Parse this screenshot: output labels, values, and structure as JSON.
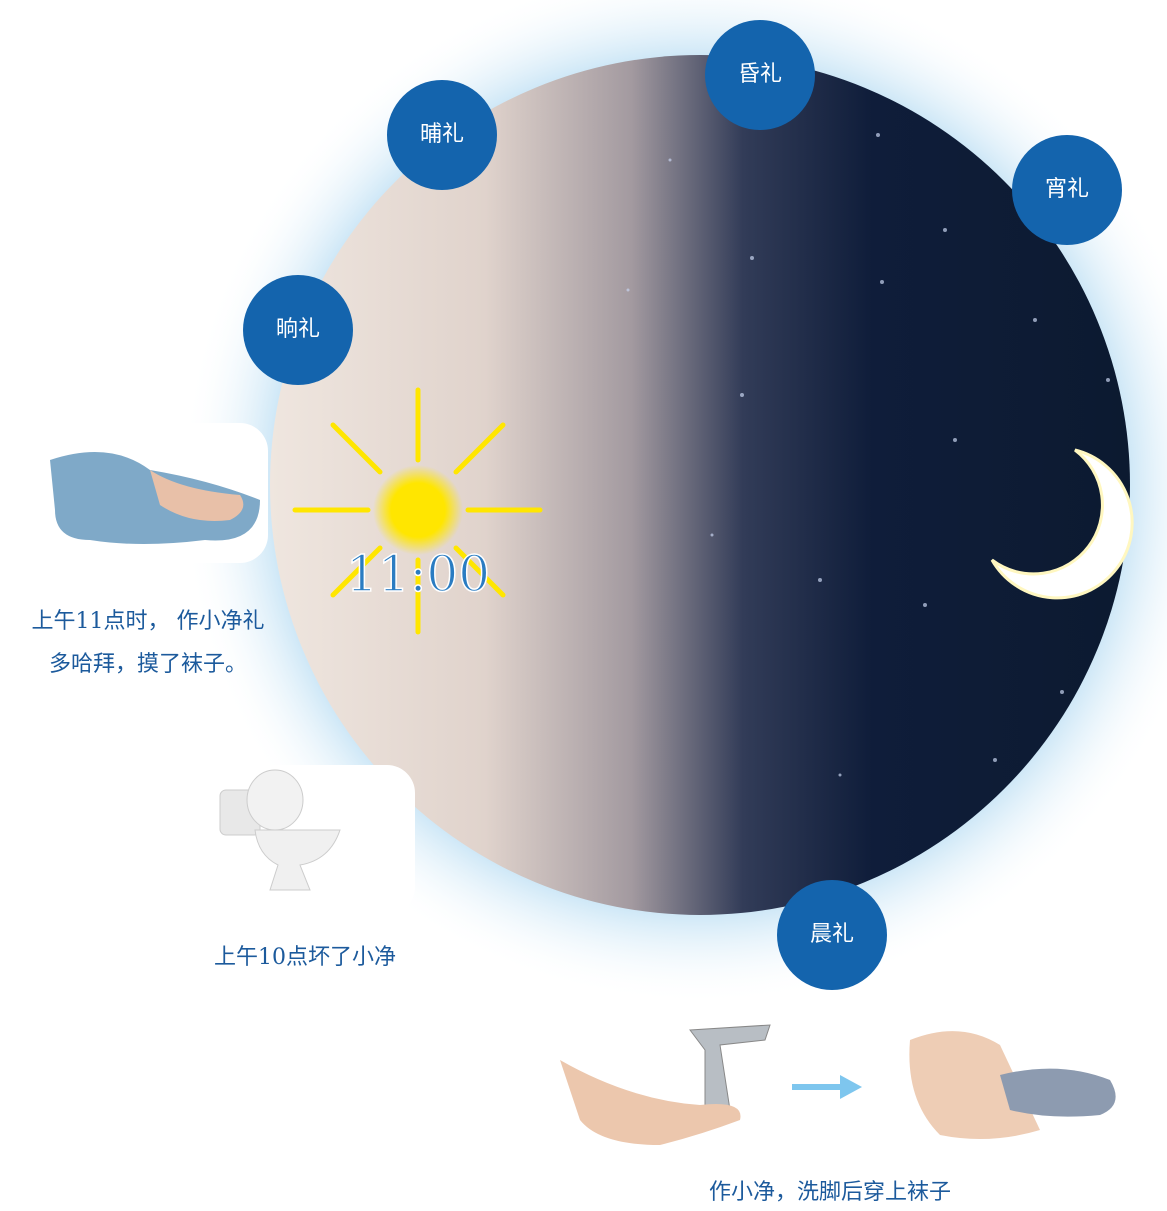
{
  "prayers": [
    {
      "label": "昏礼"
    },
    {
      "label": "晡礼"
    },
    {
      "label": "宵礼"
    },
    {
      "label": "晌礼"
    },
    {
      "label": "晨礼"
    }
  ],
  "time": "11:00",
  "captions": {
    "noon_line1": "上午11点时， 作小净礼",
    "noon_line2": "多哈拜，摸了袜子。",
    "toilet": "上午10点坏了小净",
    "wash": "作小净，洗脚后穿上袜子"
  }
}
